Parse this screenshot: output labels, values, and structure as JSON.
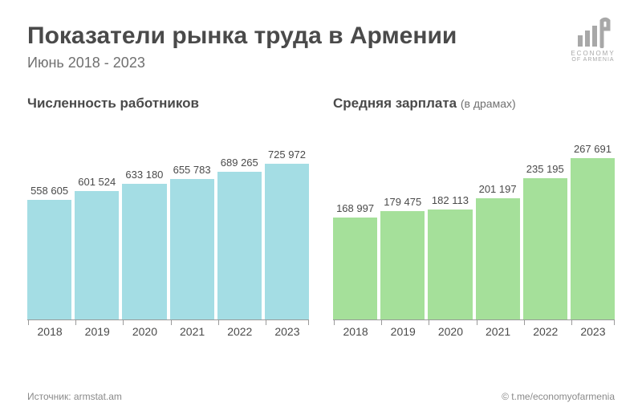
{
  "header": {
    "title": "Показатели рынка труда в Армении",
    "subtitle": "Июнь 2018 - 2023"
  },
  "logo": {
    "line1": "ECONOMY",
    "line2": "OF ARMENIA"
  },
  "chart_left": {
    "type": "bar",
    "title": "Численность работников",
    "unit": "",
    "bar_color": "#a4dde4",
    "categories": [
      "2018",
      "2019",
      "2020",
      "2021",
      "2022",
      "2023"
    ],
    "values": [
      558605,
      601524,
      633180,
      655783,
      689265,
      725972
    ],
    "display_labels": [
      "558 605",
      "601 524",
      "633 180",
      "655 783",
      "689 265",
      "725 972"
    ],
    "ymax": 900000,
    "label_fontsize": 13,
    "title_fontsize": 17,
    "axis_color": "#9a9a9a",
    "background_color": "#ffffff"
  },
  "chart_right": {
    "type": "bar",
    "title": "Средняя зарплата",
    "unit": "(в драмах)",
    "bar_color": "#a5e09a",
    "categories": [
      "2018",
      "2019",
      "2020",
      "2021",
      "2022",
      "2023"
    ],
    "values": [
      168997,
      179475,
      182113,
      201197,
      235195,
      267691
    ],
    "display_labels": [
      "168 997",
      "179 475",
      "182 113",
      "201 197",
      "235 195",
      "267 691"
    ],
    "ymax": 320000,
    "label_fontsize": 13,
    "title_fontsize": 17,
    "axis_color": "#9a9a9a",
    "background_color": "#ffffff"
  },
  "footer": {
    "source_prefix": "Источник:",
    "source": "armstat.am",
    "credit": "© t.me/economyofarmenia"
  }
}
